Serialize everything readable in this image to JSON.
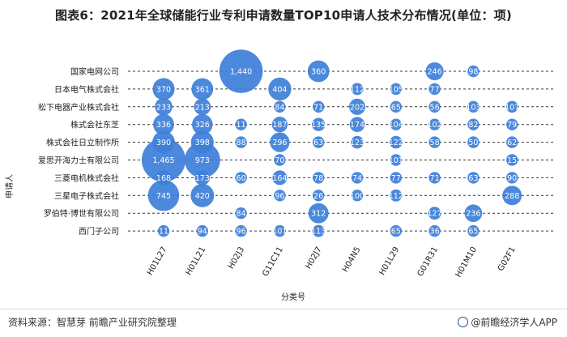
{
  "title": "图表6：2021年全球储能行业专利申请数量TOP10申请人技术分布情况(单位：项)",
  "footer": {
    "source": "资料来源：智慧芽 前瞻产业研究院整理",
    "brand": "@前瞻经济学人APP"
  },
  "colors": {
    "bubble": "#3d7fd9",
    "grid": "#333333",
    "text": "#222222"
  },
  "chart_data": {
    "type": "bubble",
    "title": "图表6：2021年全球储能行业专利申请数量TOP10申请人技术分布情况(单位：项)",
    "xlabel": "分类号",
    "ylabel": "申请人",
    "x_categories": [
      "H01L27",
      "H01L21",
      "H02J3",
      "G11C11",
      "H02J7",
      "H04N5",
      "H01L29",
      "G01R31",
      "H01M10",
      "G02F1"
    ],
    "y_categories": [
      "国家电网公司",
      "日本电气株式会社",
      "松下电器产业株式会社",
      "株式会社东芝",
      "株式会社日立制作所",
      "爱思开海力士有限公司",
      "三菱电机株式会社",
      "三星电子株式会社",
      "罗伯特·博世有限公司",
      "西门子公司"
    ],
    "points": [
      {
        "x": "H02J3",
        "y": "国家电网公司",
        "value": 1440
      },
      {
        "x": "H02J7",
        "y": "国家电网公司",
        "value": 360
      },
      {
        "x": "G01R31",
        "y": "国家电网公司",
        "value": 246
      },
      {
        "x": "H01M10",
        "y": "国家电网公司",
        "value": 98
      },
      {
        "x": "H01L27",
        "y": "日本电气株式会社",
        "value": 370
      },
      {
        "x": "H01L21",
        "y": "日本电气株式会社",
        "value": 361
      },
      {
        "x": "G11C11",
        "y": "日本电气株式会社",
        "value": 404
      },
      {
        "x": "H04N5",
        "y": "日本电气株式会社",
        "value": 112
      },
      {
        "x": "H01L29",
        "y": "日本电气株式会社",
        "value": 105
      },
      {
        "x": "G01R31",
        "y": "日本电气株式会社",
        "value": 77
      },
      {
        "x": "H01L27",
        "y": "松下电器产业株式会社",
        "value": 233
      },
      {
        "x": "H01L21",
        "y": "松下电器产业株式会社",
        "value": 213
      },
      {
        "x": "G11C11",
        "y": "松下电器产业株式会社",
        "value": 84
      },
      {
        "x": "H02J7",
        "y": "松下电器产业株式会社",
        "value": 71
      },
      {
        "x": "H04N5",
        "y": "松下电器产业株式会社",
        "value": 202
      },
      {
        "x": "H01L29",
        "y": "松下电器产业株式会社",
        "value": 65
      },
      {
        "x": "G01R31",
        "y": "松下电器产业株式会社",
        "value": 56
      },
      {
        "x": "H01M10",
        "y": "松下电器产业株式会社",
        "value": 103
      },
      {
        "x": "G02F1",
        "y": "松下电器产业株式会社",
        "value": 107
      },
      {
        "x": "H01L27",
        "y": "株式会社东芝",
        "value": 336
      },
      {
        "x": "H01L21",
        "y": "株式会社东芝",
        "value": 326
      },
      {
        "x": "H02J3",
        "y": "株式会社东芝",
        "value": 11
      },
      {
        "x": "G11C11",
        "y": "株式会社东芝",
        "value": 187
      },
      {
        "x": "H02J7",
        "y": "株式会社东芝",
        "value": 135
      },
      {
        "x": "H04N5",
        "y": "株式会社东芝",
        "value": 174
      },
      {
        "x": "H01L29",
        "y": "株式会社东芝",
        "value": 104
      },
      {
        "x": "G01R31",
        "y": "株式会社东芝",
        "value": 102
      },
      {
        "x": "H01M10",
        "y": "株式会社东芝",
        "value": 82
      },
      {
        "x": "G02F1",
        "y": "株式会社东芝",
        "value": 79
      },
      {
        "x": "H01L27",
        "y": "株式会社日立制作所",
        "value": 390
      },
      {
        "x": "H01L21",
        "y": "株式会社日立制作所",
        "value": 398
      },
      {
        "x": "H02J3",
        "y": "株式会社日立制作所",
        "value": 88
      },
      {
        "x": "G11C11",
        "y": "株式会社日立制作所",
        "value": 296
      },
      {
        "x": "H02J7",
        "y": "株式会社日立制作所",
        "value": 63
      },
      {
        "x": "H04N5",
        "y": "株式会社日立制作所",
        "value": 123
      },
      {
        "x": "H01L29",
        "y": "株式会社日立制作所",
        "value": 122
      },
      {
        "x": "G01R31",
        "y": "株式会社日立制作所",
        "value": 58
      },
      {
        "x": "H01M10",
        "y": "株式会社日立制作所",
        "value": 50
      },
      {
        "x": "G02F1",
        "y": "株式会社日立制作所",
        "value": 62
      },
      {
        "x": "H01L27",
        "y": "爱思开海力士有限公司",
        "value": 1465
      },
      {
        "x": "H01L21",
        "y": "爱思开海力士有限公司",
        "value": 973
      },
      {
        "x": "G11C11",
        "y": "爱思开海力士有限公司",
        "value": 70
      },
      {
        "x": "H01L29",
        "y": "爱思开海力士有限公司",
        "value": 101
      },
      {
        "x": "G02F1",
        "y": "爱思开海力士有限公司",
        "value": 15
      },
      {
        "x": "H01L27",
        "y": "三菱电机株式会社",
        "value": 168
      },
      {
        "x": "H01L21",
        "y": "三菱电机株式会社",
        "value": 173
      },
      {
        "x": "H02J3",
        "y": "三菱电机株式会社",
        "value": 60
      },
      {
        "x": "G11C11",
        "y": "三菱电机株式会社",
        "value": 164
      },
      {
        "x": "H02J7",
        "y": "三菱电机株式会社",
        "value": 78
      },
      {
        "x": "H04N5",
        "y": "三菱电机株式会社",
        "value": 74
      },
      {
        "x": "H01L29",
        "y": "三菱电机株式会社",
        "value": 77
      },
      {
        "x": "G01R31",
        "y": "三菱电机株式会社",
        "value": 71
      },
      {
        "x": "H01M10",
        "y": "三菱电机株式会社",
        "value": 63
      },
      {
        "x": "G02F1",
        "y": "三菱电机株式会社",
        "value": 90
      },
      {
        "x": "H01L27",
        "y": "三星电子株式会社",
        "value": 745
      },
      {
        "x": "H01L21",
        "y": "三星电子株式会社",
        "value": 420
      },
      {
        "x": "G11C11",
        "y": "三星电子株式会社",
        "value": 96
      },
      {
        "x": "H02J7",
        "y": "三星电子株式会社",
        "value": 26
      },
      {
        "x": "H04N5",
        "y": "三星电子株式会社",
        "value": 100
      },
      {
        "x": "H01L29",
        "y": "三星电子株式会社",
        "value": 112
      },
      {
        "x": "G02F1",
        "y": "三星电子株式会社",
        "value": 288
      },
      {
        "x": "H02J3",
        "y": "罗伯特·博世有限公司",
        "value": 84
      },
      {
        "x": "H02J7",
        "y": "罗伯特·博世有限公司",
        "value": 312
      },
      {
        "x": "G01R31",
        "y": "罗伯特·博世有限公司",
        "value": 127
      },
      {
        "x": "H01M10",
        "y": "罗伯特·博世有限公司",
        "value": 236
      },
      {
        "x": "H01L27",
        "y": "西门子公司",
        "value": 11
      },
      {
        "x": "H01L21",
        "y": "西门子公司",
        "value": 94
      },
      {
        "x": "H02J3",
        "y": "西门子公司",
        "value": 96
      },
      {
        "x": "G11C11",
        "y": "西门子公司",
        "value": 101
      },
      {
        "x": "H02J7",
        "y": "西门子公司",
        "value": 113
      },
      {
        "x": "H01L29",
        "y": "西门子公司",
        "value": 65
      },
      {
        "x": "G01R31",
        "y": "西门子公司",
        "value": 36
      },
      {
        "x": "H01M10",
        "y": "西门子公司",
        "value": 65
      }
    ]
  }
}
